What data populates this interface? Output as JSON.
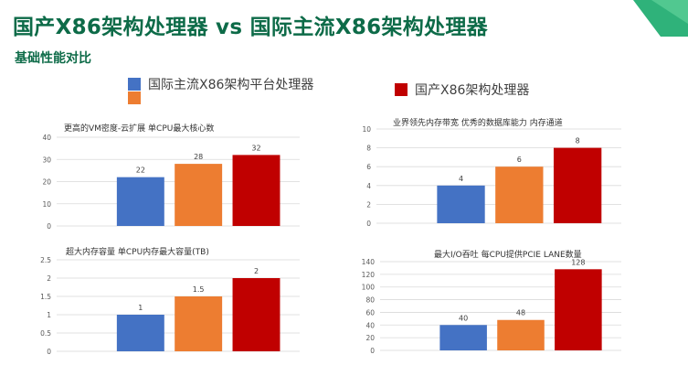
{
  "header": {
    "title": "国产X86架构处理器 vs 国际主流X86架构处理器",
    "subtitle": "基础性能对比"
  },
  "legend": {
    "items": [
      {
        "label": "国际主流X86架构平台处理器",
        "color": "#4472c4"
      },
      {
        "label": "",
        "color": "#ed7d31"
      },
      {
        "label": "国产X86架构处理器",
        "color": "#c00000"
      }
    ]
  },
  "colors": {
    "accent": "#0d6b48",
    "corner": "#2fb27a"
  },
  "chart_data": [
    {
      "type": "bar",
      "title": "更高的VM密度-云扩展 单CPU最大核心数",
      "categories": [
        "",
        "",
        ""
      ],
      "values": [
        22,
        28,
        32
      ],
      "value_labels": [
        "22",
        "28",
        "32"
      ],
      "colors": [
        "#4472c4",
        "#ed7d31",
        "#c00000"
      ],
      "ylim": [
        0,
        40
      ],
      "yticks": [
        0,
        10,
        20,
        30,
        40
      ],
      "ytick_labels": [
        "0",
        "10",
        "20",
        "30",
        "40"
      ],
      "grid": true
    },
    {
      "type": "bar",
      "title": "业界领先内存带宽 优秀的数据库能力 内存通道",
      "categories": [
        "",
        "",
        ""
      ],
      "values": [
        4,
        6,
        8
      ],
      "value_labels": [
        "4",
        "6",
        "8"
      ],
      "colors": [
        "#4472c4",
        "#ed7d31",
        "#c00000"
      ],
      "ylim": [
        0,
        10
      ],
      "yticks": [
        0,
        2,
        4,
        6,
        8,
        10
      ],
      "ytick_labels": [
        "0",
        "2",
        "4",
        "6",
        "8",
        "10"
      ],
      "grid": true
    },
    {
      "type": "bar",
      "title": "超大内存容量 单CPU内存最大容量(TB)",
      "categories": [
        "",
        "",
        ""
      ],
      "values": [
        1,
        1.5,
        2
      ],
      "value_labels": [
        "1",
        "1.5",
        "2"
      ],
      "colors": [
        "#4472c4",
        "#ed7d31",
        "#c00000"
      ],
      "ylim": [
        0,
        2.5
      ],
      "yticks": [
        0,
        0.5,
        1,
        1.5,
        2,
        2.5
      ],
      "ytick_labels": [
        "0",
        "0.5",
        "1",
        "1.5",
        "2",
        "2.5"
      ],
      "grid": true
    },
    {
      "type": "bar",
      "title": "最大I/O吞吐  每CPU提供PCIE LANE数量",
      "categories": [
        "",
        "",
        ""
      ],
      "values": [
        40,
        48,
        128
      ],
      "value_labels": [
        "40",
        "48",
        "128"
      ],
      "colors": [
        "#4472c4",
        "#ed7d31",
        "#c00000"
      ],
      "ylim": [
        0,
        140
      ],
      "yticks": [
        0,
        20,
        40,
        60,
        80,
        100,
        120,
        140
      ],
      "ytick_labels": [
        "0",
        "20",
        "40",
        "60",
        "80",
        "100",
        "120",
        "140"
      ],
      "grid": true
    }
  ]
}
